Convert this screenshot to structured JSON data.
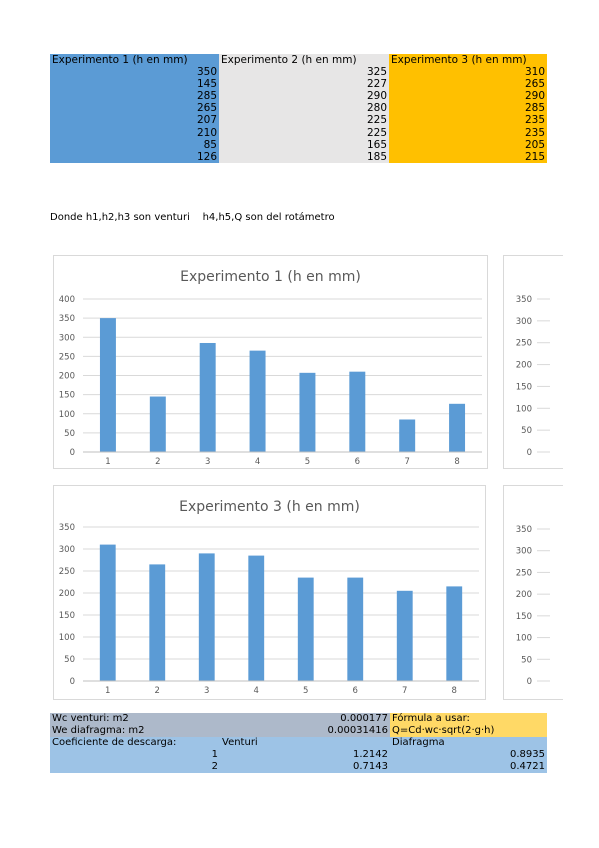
{
  "table": {
    "headers": [
      "Experimento 1 (h en mm)",
      "Experimento 2 (h en mm)",
      "Experimento 3 (h en mm)"
    ],
    "rows": [
      [
        "350",
        "325",
        "310"
      ],
      [
        "145",
        "227",
        "265"
      ],
      [
        "285",
        "290",
        "290"
      ],
      [
        "265",
        "280",
        "285"
      ],
      [
        "207",
        "225",
        "235"
      ],
      [
        "210",
        "225",
        "235"
      ],
      [
        "85",
        "165",
        "205"
      ],
      [
        "126",
        "185",
        "215"
      ]
    ]
  },
  "note": "Donde h1,h2,h3 son venturi    h4,h5,Q son del rotámetro",
  "colors": {
    "bar": "#5b9bd5",
    "exp1": "#5b9bd5",
    "exp2": "#e7e6e6",
    "exp3": "#ffc000",
    "grid": "#d9d9d9",
    "gray_row": "#adb9ca",
    "yellow_row": "#ffd966",
    "blue_row": "#9dc3e6"
  },
  "chart_data": [
    {
      "type": "bar",
      "title": "Experimento 1 (h en mm)",
      "categories": [
        "1",
        "2",
        "3",
        "4",
        "5",
        "6",
        "7",
        "8"
      ],
      "values": [
        350,
        145,
        285,
        265,
        207,
        210,
        85,
        126
      ],
      "ylim": [
        0,
        400
      ],
      "yticks": [
        "0",
        "50",
        "100",
        "150",
        "200",
        "250",
        "300",
        "350",
        "400"
      ],
      "grid": true
    },
    {
      "type": "bar",
      "title": "Experimento 3 (h en mm)",
      "categories": [
        "1",
        "2",
        "3",
        "4",
        "5",
        "6",
        "7",
        "8"
      ],
      "values": [
        310,
        265,
        290,
        285,
        235,
        235,
        205,
        215
      ],
      "ylim": [
        0,
        350
      ],
      "yticks": [
        "0",
        "50",
        "100",
        "150",
        "200",
        "250",
        "300",
        "350"
      ],
      "grid": true
    }
  ],
  "partial_charts": {
    "top_yticks": [
      "0",
      "50",
      "100",
      "150",
      "200",
      "250",
      "300",
      "350"
    ],
    "bottom_yticks": [
      "0",
      "50",
      "100",
      "150",
      "200",
      "250",
      "300",
      "350"
    ]
  },
  "bottom": {
    "wc_label": "Wc venturi: m2",
    "wc_value": "0.000177",
    "formula_label": "Fórmula a usar:",
    "we_label": "We diafragma: m2",
    "we_value": "0.00031416",
    "formula": "Q=Cd·wc·sqrt(2·g·h)",
    "coef_label": "Coeficiente de descarga:",
    "venturi_label": "Venturi",
    "diafragma_label": "Diafragma",
    "rows": [
      {
        "n": "1",
        "venturi": "1.2142",
        "diafragma": "0.8935"
      },
      {
        "n": "2",
        "venturi": "0.7143",
        "diafragma": "0.4721"
      }
    ]
  }
}
